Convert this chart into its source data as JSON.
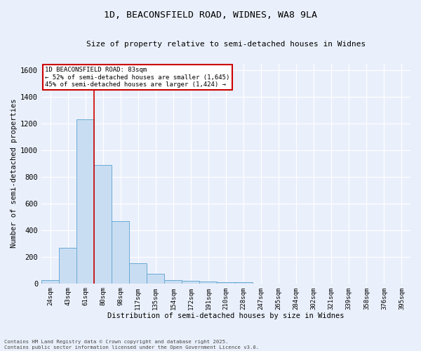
{
  "title": "1D, BEACONSFIELD ROAD, WIDNES, WA8 9LA",
  "subtitle": "Size of property relative to semi-detached houses in Widnes",
  "xlabel": "Distribution of semi-detached houses by size in Widnes",
  "ylabel": "Number of semi-detached properties",
  "bar_color": "#c9ddf2",
  "bar_edge_color": "#6aaad4",
  "categories": [
    "24sqm",
    "43sqm",
    "61sqm",
    "80sqm",
    "98sqm",
    "117sqm",
    "135sqm",
    "154sqm",
    "172sqm",
    "191sqm",
    "210sqm",
    "228sqm",
    "247sqm",
    "265sqm",
    "284sqm",
    "302sqm",
    "321sqm",
    "339sqm",
    "358sqm",
    "376sqm",
    "395sqm"
  ],
  "values": [
    25,
    265,
    1230,
    890,
    470,
    150,
    70,
    25,
    20,
    15,
    10,
    10,
    0,
    0,
    0,
    0,
    0,
    0,
    0,
    0,
    0
  ],
  "red_line_x": 2.5,
  "annotation_text": "1D BEACONSFIELD ROAD: 83sqm\n← 52% of semi-detached houses are smaller (1,645)\n45% of semi-detached houses are larger (1,424) →",
  "annotation_box_color": "#ffffff",
  "annotation_box_edge_color": "#cc0000",
  "footer_line1": "Contains HM Land Registry data © Crown copyright and database right 2025.",
  "footer_line2": "Contains public sector information licensed under the Open Government Licence v3.0.",
  "ylim": [
    0,
    1650
  ],
  "yticks": [
    0,
    200,
    400,
    600,
    800,
    1000,
    1200,
    1400,
    1600
  ],
  "bg_color": "#eaf0fb",
  "grid_color": "#ffffff"
}
